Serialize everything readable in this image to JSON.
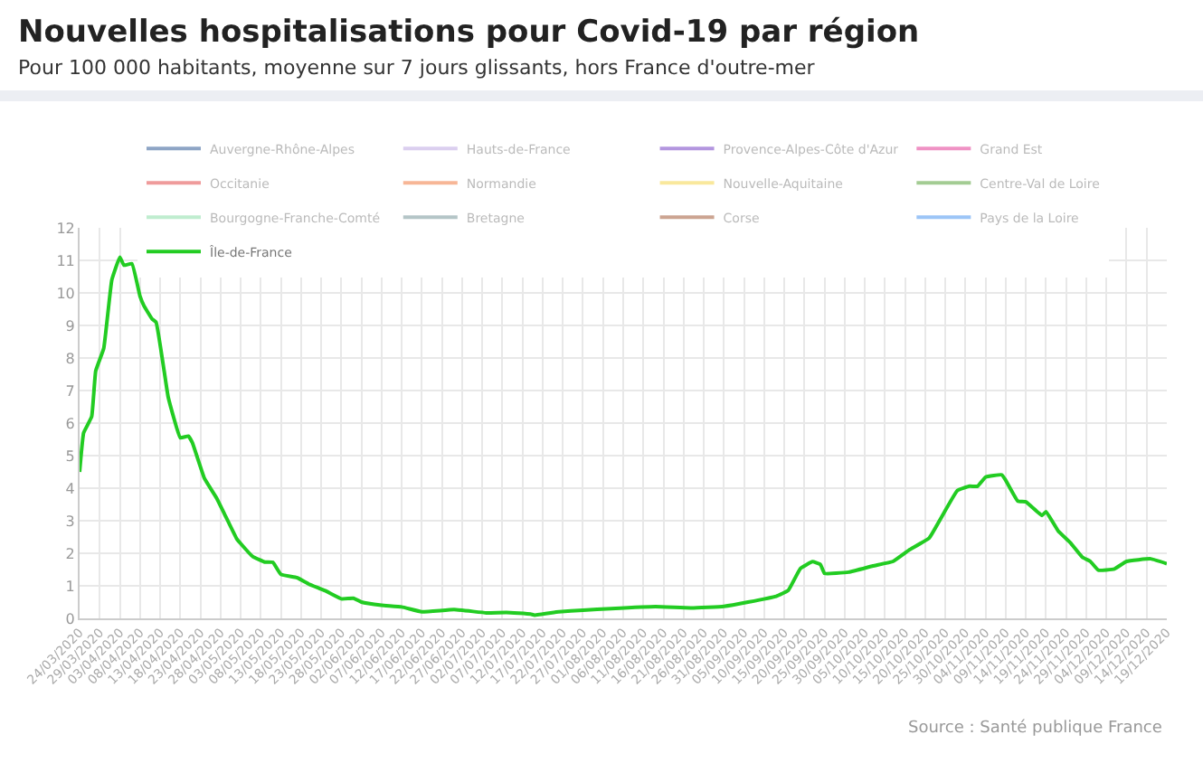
{
  "chart_data": {
    "type": "line",
    "title": "Nouvelles hospitalisations pour Covid-19 par région",
    "subtitle": "Pour 100 000 habitants, moyenne sur 7 jours glissants, hors France d'outre-mer",
    "x": [
      "2020-03-24",
      "2020-03-25",
      "2020-03-27",
      "2020-03-28",
      "2020-03-30",
      "2020-04-01",
      "2020-04-03",
      "2020-04-04",
      "2020-04-06",
      "2020-04-08",
      "2020-04-09",
      "2020-04-11",
      "2020-04-12",
      "2020-04-14",
      "2020-04-15",
      "2020-04-18",
      "2020-04-20",
      "2020-04-21",
      "2020-04-24",
      "2020-04-27",
      "2020-04-29",
      "2020-05-02",
      "2020-05-03",
      "2020-05-06",
      "2020-05-09",
      "2020-05-11",
      "2020-05-13",
      "2020-05-17",
      "2020-05-20",
      "2020-05-24",
      "2020-05-28",
      "2020-05-31",
      "2020-06-02",
      "2020-06-07",
      "2020-06-12",
      "2020-06-17",
      "2020-06-25",
      "2020-07-03",
      "2020-07-08",
      "2020-07-14",
      "2020-07-15",
      "2020-07-21",
      "2020-07-27",
      "2020-08-03",
      "2020-08-14",
      "2020-08-23",
      "2020-08-31",
      "2020-09-06",
      "2020-09-13",
      "2020-09-16",
      "2020-09-19",
      "2020-09-22",
      "2020-09-24",
      "2020-09-25",
      "2020-10-01",
      "2020-10-07",
      "2020-10-12",
      "2020-10-16",
      "2020-10-21",
      "2020-10-24",
      "2020-10-28",
      "2020-10-31",
      "2020-11-02",
      "2020-11-04",
      "2020-11-08",
      "2020-11-09",
      "2020-11-12",
      "2020-11-14",
      "2020-11-18",
      "2020-11-19",
      "2020-11-22",
      "2020-11-25",
      "2020-11-28",
      "2020-11-30",
      "2020-12-02",
      "2020-12-06",
      "2020-12-09",
      "2020-12-15",
      "2020-12-19"
    ],
    "series": [
      {
        "name": "Auvergne-Rhône-Alpes",
        "color": "#1f4e8c",
        "values": [
          null,
          null,
          null,
          null,
          null,
          null,
          null,
          null,
          null,
          null,
          null,
          null,
          null,
          null,
          null,
          null,
          null,
          null,
          null,
          null,
          null,
          null,
          null,
          null,
          null,
          null,
          null,
          null,
          null,
          null,
          null,
          null,
          null,
          null,
          null,
          null,
          null,
          null,
          null,
          null,
          null,
          null,
          null,
          null,
          null,
          null,
          null,
          null,
          null,
          null,
          null,
          null,
          null,
          null,
          null,
          null,
          null,
          null,
          null,
          null,
          null,
          null,
          null,
          null,
          null,
          null,
          null,
          null,
          null,
          null,
          null,
          null,
          null,
          null,
          null,
          null,
          null,
          null,
          null
        ]
      },
      {
        "name": "Hauts-de-France",
        "color": "#b9a0e0",
        "values": [
          null,
          null,
          null,
          null,
          null,
          null,
          null,
          null,
          null,
          null,
          null,
          null,
          null,
          null,
          null,
          null,
          null,
          null,
          null,
          null,
          null,
          null,
          null,
          null,
          null,
          null,
          null,
          null,
          null,
          null,
          null,
          null,
          null,
          null,
          null,
          null,
          null,
          null,
          null,
          null,
          null,
          null,
          null,
          null,
          null,
          null,
          null,
          null,
          null,
          null,
          null,
          null,
          null,
          null,
          null,
          null,
          null,
          null,
          null,
          null,
          null,
          null,
          null,
          null,
          null,
          null,
          null,
          null,
          null,
          null,
          null,
          null,
          null,
          null,
          null,
          null,
          null,
          null,
          null
        ]
      },
      {
        "name": "Provence-Alpes-Côte d'Azur",
        "color": "#6a2fc0",
        "values": [
          null,
          null,
          null,
          null,
          null,
          null,
          null,
          null,
          null,
          null,
          null,
          null,
          null,
          null,
          null,
          null,
          null,
          null,
          null,
          null,
          null,
          null,
          null,
          null,
          null,
          null,
          null,
          null,
          null,
          null,
          null,
          null,
          null,
          null,
          null,
          null,
          null,
          null,
          null,
          null,
          null,
          null,
          null,
          null,
          null,
          null,
          null,
          null,
          null,
          null,
          null,
          null,
          null,
          null,
          null,
          null,
          null,
          null,
          null,
          null,
          null,
          null,
          null,
          null,
          null,
          null,
          null,
          null,
          null,
          null,
          null,
          null,
          null,
          null,
          null,
          null,
          null,
          null,
          null
        ]
      },
      {
        "name": "Grand Est",
        "color": "#e0288a",
        "values": [
          null,
          null,
          null,
          null,
          null,
          null,
          null,
          null,
          null,
          null,
          null,
          null,
          null,
          null,
          null,
          null,
          null,
          null,
          null,
          null,
          null,
          null,
          null,
          null,
          null,
          null,
          null,
          null,
          null,
          null,
          null,
          null,
          null,
          null,
          null,
          null,
          null,
          null,
          null,
          null,
          null,
          null,
          null,
          null,
          null,
          null,
          null,
          null,
          null,
          null,
          null,
          null,
          null,
          null,
          null,
          null,
          null,
          null,
          null,
          null,
          null,
          null,
          null,
          null,
          null,
          null,
          null,
          null,
          null,
          null,
          null,
          null,
          null,
          null,
          null,
          null,
          null,
          null,
          null
        ]
      },
      {
        "name": "Occitanie",
        "color": "#e03a3a",
        "values": [
          null,
          null,
          null,
          null,
          null,
          null,
          null,
          null,
          null,
          null,
          null,
          null,
          null,
          null,
          null,
          null,
          null,
          null,
          null,
          null,
          null,
          null,
          null,
          null,
          null,
          null,
          null,
          null,
          null,
          null,
          null,
          null,
          null,
          null,
          null,
          null,
          null,
          null,
          null,
          null,
          null,
          null,
          null,
          null,
          null,
          null,
          null,
          null,
          null,
          null,
          null,
          null,
          null,
          null,
          null,
          null,
          null,
          null,
          null,
          null,
          null,
          null,
          null,
          null,
          null,
          null,
          null,
          null,
          null,
          null,
          null,
          null,
          null,
          null,
          null,
          null,
          null,
          null,
          null
        ]
      },
      {
        "name": "Normandie",
        "color": "#f07030",
        "values": [
          null,
          null,
          null,
          null,
          null,
          null,
          null,
          null,
          null,
          null,
          null,
          null,
          null,
          null,
          null,
          null,
          null,
          null,
          null,
          null,
          null,
          null,
          null,
          null,
          null,
          null,
          null,
          null,
          null,
          null,
          null,
          null,
          null,
          null,
          null,
          null,
          null,
          null,
          null,
          null,
          null,
          null,
          null,
          null,
          null,
          null,
          null,
          null,
          null,
          null,
          null,
          null,
          null,
          null,
          null,
          null,
          null,
          null,
          null,
          null,
          null,
          null,
          null,
          null,
          null,
          null,
          null,
          null,
          null,
          null,
          null,
          null,
          null,
          null,
          null,
          null,
          null,
          null,
          null
        ]
      },
      {
        "name": "Nouvelle-Aquitaine",
        "color": "#f5d23c",
        "values": [
          null,
          null,
          null,
          null,
          null,
          null,
          null,
          null,
          null,
          null,
          null,
          null,
          null,
          null,
          null,
          null,
          null,
          null,
          null,
          null,
          null,
          null,
          null,
          null,
          null,
          null,
          null,
          null,
          null,
          null,
          null,
          null,
          null,
          null,
          null,
          null,
          null,
          null,
          null,
          null,
          null,
          null,
          null,
          null,
          null,
          null,
          null,
          null,
          null,
          null,
          null,
          null,
          null,
          null,
          null,
          null,
          null,
          null,
          null,
          null,
          null,
          null,
          null,
          null,
          null,
          null,
          null,
          null,
          null,
          null,
          null,
          null,
          null,
          null,
          null,
          null,
          null,
          null,
          null
        ]
      },
      {
        "name": "Centre-Val de Loire",
        "color": "#4a9a2a",
        "values": [
          null,
          null,
          null,
          null,
          null,
          null,
          null,
          null,
          null,
          null,
          null,
          null,
          null,
          null,
          null,
          null,
          null,
          null,
          null,
          null,
          null,
          null,
          null,
          null,
          null,
          null,
          null,
          null,
          null,
          null,
          null,
          null,
          null,
          null,
          null,
          null,
          null,
          null,
          null,
          null,
          null,
          null,
          null,
          null,
          null,
          null,
          null,
          null,
          null,
          null,
          null,
          null,
          null,
          null,
          null,
          null,
          null,
          null,
          null,
          null,
          null,
          null,
          null,
          null,
          null,
          null,
          null,
          null,
          null,
          null,
          null,
          null,
          null,
          null,
          null,
          null,
          null,
          null,
          null
        ]
      },
      {
        "name": "Bourgogne-Franche-Comté",
        "color": "#80dca0",
        "values": [
          null,
          null,
          null,
          null,
          null,
          null,
          null,
          null,
          null,
          null,
          null,
          null,
          null,
          null,
          null,
          null,
          null,
          null,
          null,
          null,
          null,
          null,
          null,
          null,
          null,
          null,
          null,
          null,
          null,
          null,
          null,
          null,
          null,
          null,
          null,
          null,
          null,
          null,
          null,
          null,
          null,
          null,
          null,
          null,
          null,
          null,
          null,
          null,
          null,
          null,
          null,
          null,
          null,
          null,
          null,
          null,
          null,
          null,
          null,
          null,
          null,
          null,
          null,
          null,
          null,
          null,
          null,
          null,
          null,
          null,
          null,
          null,
          null,
          null,
          null,
          null,
          null,
          null,
          null
        ]
      },
      {
        "name": "Bretagne",
        "color": "#6a8c90",
        "values": [
          null,
          null,
          null,
          null,
          null,
          null,
          null,
          null,
          null,
          null,
          null,
          null,
          null,
          null,
          null,
          null,
          null,
          null,
          null,
          null,
          null,
          null,
          null,
          null,
          null,
          null,
          null,
          null,
          null,
          null,
          null,
          null,
          null,
          null,
          null,
          null,
          null,
          null,
          null,
          null,
          null,
          null,
          null,
          null,
          null,
          null,
          null,
          null,
          null,
          null,
          null,
          null,
          null,
          null,
          null,
          null,
          null,
          null,
          null,
          null,
          null,
          null,
          null,
          null,
          null,
          null,
          null,
          null,
          null,
          null,
          null,
          null,
          null,
          null,
          null,
          null,
          null,
          null,
          null
        ]
      },
      {
        "name": "Corse",
        "color": "#9a4a25",
        "values": [
          null,
          null,
          null,
          null,
          null,
          null,
          null,
          null,
          null,
          null,
          null,
          null,
          null,
          null,
          null,
          null,
          null,
          null,
          null,
          null,
          null,
          null,
          null,
          null,
          null,
          null,
          null,
          null,
          null,
          null,
          null,
          null,
          null,
          null,
          null,
          null,
          null,
          null,
          null,
          null,
          null,
          null,
          null,
          null,
          null,
          null,
          null,
          null,
          null,
          null,
          null,
          null,
          null,
          null,
          null,
          null,
          null,
          null,
          null,
          null,
          null,
          null,
          null,
          null,
          null,
          null,
          null,
          null,
          null,
          null,
          null,
          null,
          null,
          null,
          null,
          null,
          null,
          null,
          null
        ]
      },
      {
        "name": "Pays de la Loire",
        "color": "#3a8cf0",
        "values": [
          null,
          null,
          null,
          null,
          null,
          null,
          null,
          null,
          null,
          null,
          null,
          null,
          null,
          null,
          null,
          null,
          null,
          null,
          null,
          null,
          null,
          null,
          null,
          null,
          null,
          null,
          null,
          null,
          null,
          null,
          null,
          null,
          null,
          null,
          null,
          null,
          null,
          null,
          null,
          null,
          null,
          null,
          null,
          null,
          null,
          null,
          null,
          null,
          null,
          null,
          null,
          null,
          null,
          null,
          null,
          null,
          null,
          null,
          null,
          null,
          null,
          null,
          null,
          null,
          null,
          null,
          null,
          null,
          null,
          null,
          null,
          null,
          null,
          null,
          null,
          null,
          null,
          null,
          null
        ]
      },
      {
        "name": "Île-de-France",
        "color": "#22cc22",
        "values": [
          4.5,
          5.7,
          6.2,
          7.6,
          8.3,
          10.4,
          11.1,
          10.85,
          10.9,
          9.9,
          9.6,
          9.2,
          9.1,
          7.6,
          6.8,
          5.55,
          5.6,
          5.4,
          4.3,
          3.7,
          3.2,
          2.45,
          2.3,
          1.9,
          1.73,
          1.72,
          1.35,
          1.25,
          1.05,
          0.85,
          0.6,
          0.62,
          0.5,
          0.4,
          0.35,
          0.2,
          0.27,
          0.17,
          0.18,
          0.13,
          0.1,
          0.2,
          0.25,
          0.3,
          0.36,
          0.32,
          0.37,
          0.5,
          0.68,
          0.86,
          1.53,
          1.74,
          1.65,
          1.38,
          1.42,
          1.61,
          1.75,
          2.1,
          2.47,
          3.1,
          3.93,
          4.06,
          4.06,
          4.34,
          4.41,
          4.24,
          3.6,
          3.58,
          3.16,
          3.28,
          2.69,
          2.33,
          1.88,
          1.75,
          1.48,
          1.52,
          1.75,
          1.83,
          1.68
        ]
      }
    ],
    "xlim": [
      "2020-03-24",
      "2020-12-19"
    ],
    "xticks": [
      {
        "value": "2020-03-24",
        "label": "24/03/2020"
      },
      {
        "value": "2020-03-29",
        "label": "29/03/2020"
      },
      {
        "value": "2020-04-03",
        "label": "03/04/2020"
      },
      {
        "value": "2020-04-08",
        "label": "08/04/2020"
      },
      {
        "value": "2020-04-13",
        "label": "13/04/2020"
      },
      {
        "value": "2020-04-18",
        "label": "18/04/2020"
      },
      {
        "value": "2020-04-23",
        "label": "23/04/2020"
      },
      {
        "value": "2020-04-28",
        "label": "28/04/2020"
      },
      {
        "value": "2020-05-03",
        "label": "03/05/2020"
      },
      {
        "value": "2020-05-08",
        "label": "08/05/2020"
      },
      {
        "value": "2020-05-13",
        "label": "13/05/2020"
      },
      {
        "value": "2020-05-18",
        "label": "18/05/2020"
      },
      {
        "value": "2020-05-23",
        "label": "23/05/2020"
      },
      {
        "value": "2020-05-28",
        "label": "28/05/2020"
      },
      {
        "value": "2020-06-02",
        "label": "02/06/2020"
      },
      {
        "value": "2020-06-07",
        "label": "07/06/2020"
      },
      {
        "value": "2020-06-12",
        "label": "12/06/2020"
      },
      {
        "value": "2020-06-17",
        "label": "17/06/2020"
      },
      {
        "value": "2020-06-22",
        "label": "22/06/2020"
      },
      {
        "value": "2020-06-27",
        "label": "27/06/2020"
      },
      {
        "value": "2020-07-02",
        "label": "02/07/2020"
      },
      {
        "value": "2020-07-07",
        "label": "07/07/2020"
      },
      {
        "value": "2020-07-12",
        "label": "12/07/2020"
      },
      {
        "value": "2020-07-17",
        "label": "17/07/2020"
      },
      {
        "value": "2020-07-22",
        "label": "22/07/2020"
      },
      {
        "value": "2020-07-27",
        "label": "27/07/2020"
      },
      {
        "value": "2020-08-01",
        "label": "01/08/2020"
      },
      {
        "value": "2020-08-06",
        "label": "06/08/2020"
      },
      {
        "value": "2020-08-11",
        "label": "11/08/2020"
      },
      {
        "value": "2020-08-16",
        "label": "16/08/2020"
      },
      {
        "value": "2020-08-21",
        "label": "21/08/2020"
      },
      {
        "value": "2020-08-26",
        "label": "26/08/2020"
      },
      {
        "value": "2020-08-31",
        "label": "31/08/2020"
      },
      {
        "value": "2020-09-05",
        "label": "05/09/2020"
      },
      {
        "value": "2020-09-10",
        "label": "10/09/2020"
      },
      {
        "value": "2020-09-15",
        "label": "15/09/2020"
      },
      {
        "value": "2020-09-20",
        "label": "20/09/2020"
      },
      {
        "value": "2020-09-25",
        "label": "25/09/2020"
      },
      {
        "value": "2020-09-30",
        "label": "30/09/2020"
      },
      {
        "value": "2020-10-05",
        "label": "05/10/2020"
      },
      {
        "value": "2020-10-10",
        "label": "10/10/2020"
      },
      {
        "value": "2020-10-15",
        "label": "15/10/2020"
      },
      {
        "value": "2020-10-20",
        "label": "20/10/2020"
      },
      {
        "value": "2020-10-25",
        "label": "25/10/2020"
      },
      {
        "value": "2020-10-30",
        "label": "30/10/2020"
      },
      {
        "value": "2020-11-04",
        "label": "04/11/2020"
      },
      {
        "value": "2020-11-09",
        "label": "09/11/2020"
      },
      {
        "value": "2020-11-14",
        "label": "14/11/2020"
      },
      {
        "value": "2020-11-19",
        "label": "19/11/2020"
      },
      {
        "value": "2020-11-24",
        "label": "24/11/2020"
      },
      {
        "value": "2020-11-29",
        "label": "29/11/2020"
      },
      {
        "value": "2020-12-04",
        "label": "04/12/2020"
      },
      {
        "value": "2020-12-09",
        "label": "09/12/2020"
      },
      {
        "value": "2020-12-14",
        "label": "14/12/2020"
      },
      {
        "value": "2020-12-19",
        "label": "19/12/2020"
      }
    ],
    "ylim": [
      0,
      12
    ],
    "yticks": [
      0,
      1,
      2,
      3,
      4,
      5,
      6,
      7,
      8,
      9,
      10,
      11,
      12
    ],
    "grid": true,
    "legend": "top",
    "marker": "none",
    "line_style": "solid",
    "annotations": [
      "Source : Santé publique France"
    ]
  }
}
